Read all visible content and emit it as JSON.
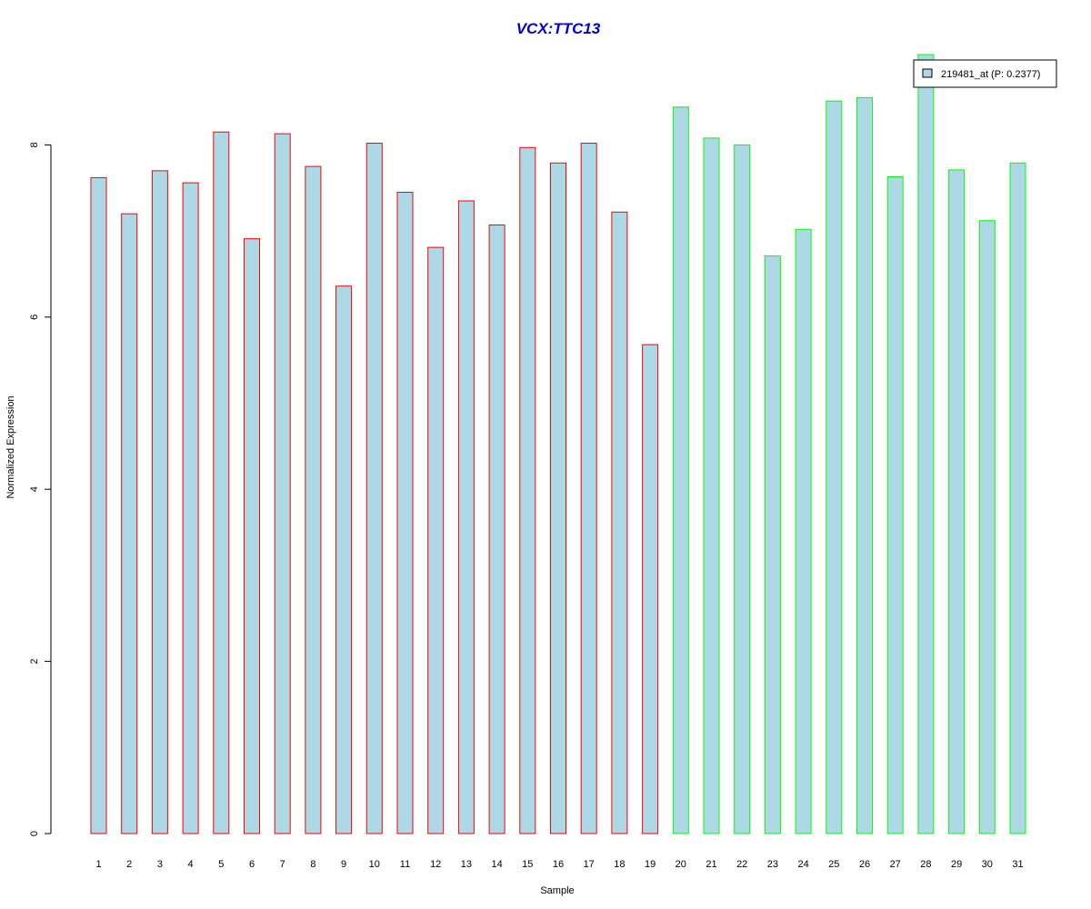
{
  "chart_data": {
    "type": "bar",
    "title": "VCX:TTC13",
    "xlabel": "Sample",
    "ylabel": "Normalized Expression",
    "ylim": [
      0,
      9.05
    ],
    "yticks": [
      0,
      2,
      4,
      6,
      8
    ],
    "categories": [
      "1",
      "2",
      "3",
      "4",
      "5",
      "6",
      "7",
      "8",
      "9",
      "10",
      "11",
      "12",
      "13",
      "14",
      "15",
      "16",
      "17",
      "18",
      "19",
      "20",
      "21",
      "22",
      "23",
      "24",
      "25",
      "26",
      "27",
      "28",
      "29",
      "30",
      "31"
    ],
    "series": [
      {
        "name": "219481_at (P: 0.2377)",
        "values": [
          7.62,
          7.2,
          7.7,
          7.56,
          8.15,
          6.91,
          8.13,
          7.75,
          6.36,
          8.02,
          7.45,
          6.81,
          7.35,
          7.07,
          7.97,
          7.79,
          8.02,
          7.22,
          5.68,
          8.44,
          8.08,
          8.0,
          6.71,
          7.02,
          8.51,
          8.55,
          7.63,
          9.05,
          7.71,
          7.12,
          7.79
        ],
        "fill": "#add8e6"
      }
    ],
    "groups": [
      {
        "border_color": "#ff0000",
        "samples": [
          "1",
          "2",
          "3",
          "4",
          "5",
          "6",
          "7",
          "8",
          "9",
          "10",
          "11",
          "12",
          "13",
          "14",
          "15",
          "16",
          "17",
          "18",
          "19"
        ]
      },
      {
        "border_color": "#00ff00",
        "samples": [
          "20",
          "21",
          "22",
          "23",
          "24",
          "25",
          "26",
          "27",
          "28",
          "29",
          "30",
          "31"
        ]
      }
    ],
    "legend": {
      "position": "top-right",
      "label": "219481_at (P: 0.2377)"
    },
    "grid": false,
    "title_color": "#0000cd"
  }
}
